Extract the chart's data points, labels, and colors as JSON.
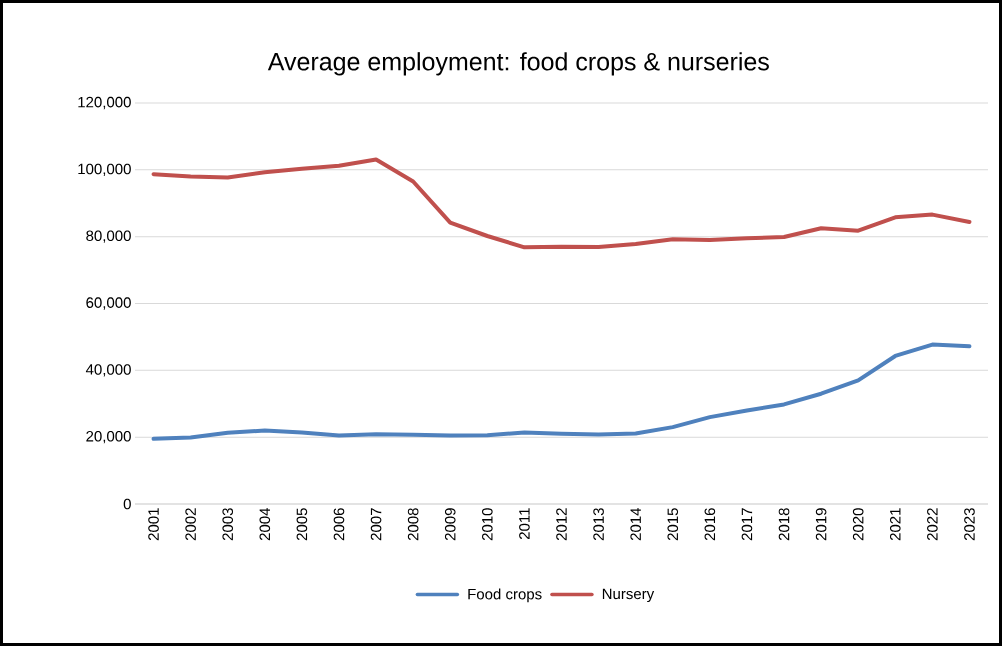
{
  "chart_data": {
    "type": "line",
    "title": "Average employment: food crops & nurseries",
    "categories": [
      "2001",
      "2002",
      "2003",
      "2004",
      "2005",
      "2006",
      "2007",
      "2008",
      "2009",
      "2010",
      "2011",
      "2012",
      "2013",
      "2014",
      "2015",
      "2016",
      "2017",
      "2018",
      "2019",
      "2020",
      "2021",
      "2022",
      "2023"
    ],
    "series": [
      {
        "name": "Food crops",
        "color": "#4f81bd",
        "values": [
          19500,
          19900,
          21300,
          22000,
          21400,
          20500,
          20900,
          20700,
          20500,
          20600,
          21400,
          21000,
          20800,
          21100,
          23000,
          26000,
          28000,
          29800,
          33000,
          37000,
          44300,
          47700,
          47200
        ]
      },
      {
        "name": "Nursery",
        "color": "#c0504d",
        "values": [
          98700,
          98000,
          97700,
          99300,
          100300,
          101200,
          103100,
          96500,
          84200,
          80200,
          76800,
          77000,
          76900,
          77800,
          79200,
          79000,
          79500,
          79900,
          82500,
          81800,
          85800,
          86600,
          84400
        ]
      }
    ],
    "ylim": [
      0,
      120000
    ],
    "yticks": [
      {
        "value": 0,
        "label": "0"
      },
      {
        "value": 20000,
        "label": "20,000"
      },
      {
        "value": 40000,
        "label": "40,000"
      },
      {
        "value": 60000,
        "label": "60,000"
      },
      {
        "value": 80000,
        "label": "80,000"
      },
      {
        "value": 100000,
        "label": "100,000"
      },
      {
        "value": 120000,
        "label": "120,000"
      }
    ],
    "grid": "y",
    "legend": "bottom",
    "marker": "none",
    "line_style": "solid"
  }
}
